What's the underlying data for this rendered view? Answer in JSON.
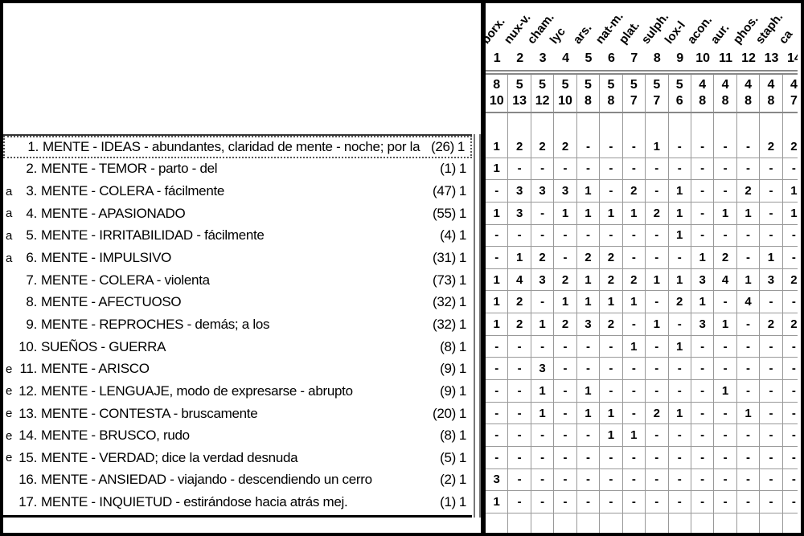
{
  "colors": {
    "grid_line": "#999999",
    "panel_border": "#000000",
    "selection_dotted": "#555555"
  },
  "columns": [
    {
      "num": "1",
      "name": "borx.",
      "count": "8",
      "sum": "10"
    },
    {
      "num": "2",
      "name": "nux-v.",
      "count": "5",
      "sum": "13"
    },
    {
      "num": "3",
      "name": "cham.",
      "count": "5",
      "sum": "12"
    },
    {
      "num": "4",
      "name": "lyc",
      "count": "5",
      "sum": "10"
    },
    {
      "num": "5",
      "name": "ars.",
      "count": "5",
      "sum": "8"
    },
    {
      "num": "6",
      "name": "nat-m.",
      "count": "5",
      "sum": "8"
    },
    {
      "num": "7",
      "name": "plat.",
      "count": "5",
      "sum": "7"
    },
    {
      "num": "8",
      "name": "sulph.",
      "count": "5",
      "sum": "7"
    },
    {
      "num": "9",
      "name": "lox-l",
      "count": "5",
      "sum": "6"
    },
    {
      "num": "10",
      "name": "acon.",
      "count": "4",
      "sum": "8"
    },
    {
      "num": "11",
      "name": "aur.",
      "count": "4",
      "sum": "8"
    },
    {
      "num": "12",
      "name": "phos.",
      "count": "4",
      "sum": "8"
    },
    {
      "num": "13",
      "name": "staph.",
      "count": "4",
      "sum": "8"
    },
    {
      "num": "14",
      "name": "ca",
      "count": "4",
      "sum": "7"
    }
  ],
  "rubrics": [
    {
      "prefix": "",
      "num": "1.",
      "label": "MENTE - IDEAS - abundantes, claridad de mente - noche; por la",
      "count": "(26)",
      "intensity": "1",
      "selected": true,
      "cells": [
        "1",
        "2",
        "2",
        "2",
        "-",
        "-",
        "-",
        "1",
        "-",
        "-",
        "-",
        "-",
        "2",
        "2"
      ]
    },
    {
      "prefix": "",
      "num": "2.",
      "label": "MENTE - TEMOR - parto - del",
      "count": "(1)",
      "intensity": "1",
      "selected": false,
      "cells": [
        "1",
        "-",
        "-",
        "-",
        "-",
        "-",
        "-",
        "-",
        "-",
        "-",
        "-",
        "-",
        "-",
        "-"
      ]
    },
    {
      "prefix": "a",
      "num": "3.",
      "label": "MENTE - COLERA - fácilmente",
      "count": "(47)",
      "intensity": "1",
      "selected": false,
      "cells": [
        "-",
        "3",
        "3",
        "3",
        "1",
        "-",
        "2",
        "-",
        "1",
        "-",
        "-",
        "2",
        "-",
        "1"
      ]
    },
    {
      "prefix": "a",
      "num": "4.",
      "label": "MENTE - APASIONADO",
      "count": "(55)",
      "intensity": "1",
      "selected": false,
      "cells": [
        "1",
        "3",
        "-",
        "1",
        "1",
        "1",
        "1",
        "2",
        "1",
        "-",
        "1",
        "1",
        "-",
        "1"
      ]
    },
    {
      "prefix": "a",
      "num": "5.",
      "label": "MENTE - IRRITABILIDAD - fácilmente",
      "count": "(4)",
      "intensity": "1",
      "selected": false,
      "cells": [
        "-",
        "-",
        "-",
        "-",
        "-",
        "-",
        "-",
        "-",
        "1",
        "-",
        "-",
        "-",
        "-",
        "-"
      ]
    },
    {
      "prefix": "a",
      "num": "6.",
      "label": "MENTE - IMPULSIVO",
      "count": "(31)",
      "intensity": "1",
      "selected": false,
      "cells": [
        "-",
        "1",
        "2",
        "-",
        "2",
        "2",
        "-",
        "-",
        "-",
        "1",
        "2",
        "-",
        "1",
        "-"
      ]
    },
    {
      "prefix": "",
      "num": "7.",
      "label": "MENTE - COLERA - violenta",
      "count": "(73)",
      "intensity": "1",
      "selected": false,
      "cells": [
        "1",
        "4",
        "3",
        "2",
        "1",
        "2",
        "2",
        "1",
        "1",
        "3",
        "4",
        "1",
        "3",
        "2"
      ]
    },
    {
      "prefix": "",
      "num": "8.",
      "label": "MENTE - AFECTUOSO",
      "count": "(32)",
      "intensity": "1",
      "selected": false,
      "cells": [
        "1",
        "2",
        "-",
        "1",
        "1",
        "1",
        "1",
        "-",
        "2",
        "1",
        "-",
        "4",
        "-",
        "-"
      ]
    },
    {
      "prefix": "",
      "num": "9.",
      "label": "MENTE - REPROCHES - demás; a los",
      "count": "(32)",
      "intensity": "1",
      "selected": false,
      "cells": [
        "1",
        "2",
        "1",
        "2",
        "3",
        "2",
        "-",
        "1",
        "-",
        "3",
        "1",
        "-",
        "2",
        "2"
      ]
    },
    {
      "prefix": "",
      "num": "10.",
      "label": "SUEÑOS - GUERRA",
      "count": "(8)",
      "intensity": "1",
      "selected": false,
      "cells": [
        "-",
        "-",
        "-",
        "-",
        "-",
        "-",
        "1",
        "-",
        "1",
        "-",
        "-",
        "-",
        "-",
        "-"
      ]
    },
    {
      "prefix": "e",
      "num": "11.",
      "label": "MENTE - ARISCO",
      "count": "(9)",
      "intensity": "1",
      "selected": false,
      "cells": [
        "-",
        "-",
        "3",
        "-",
        "-",
        "-",
        "-",
        "-",
        "-",
        "-",
        "-",
        "-",
        "-",
        "-"
      ]
    },
    {
      "prefix": "e",
      "num": "12.",
      "label": "MENTE - LENGUAJE, modo de expresarse - abrupto",
      "count": "(9)",
      "intensity": "1",
      "selected": false,
      "cells": [
        "-",
        "-",
        "1",
        "-",
        "1",
        "-",
        "-",
        "-",
        "-",
        "-",
        "1",
        "-",
        "-",
        "-"
      ]
    },
    {
      "prefix": "e",
      "num": "13.",
      "label": "MENTE - CONTESTA - bruscamente",
      "count": "(20)",
      "intensity": "1",
      "selected": false,
      "cells": [
        "-",
        "-",
        "1",
        "-",
        "1",
        "1",
        "-",
        "2",
        "1",
        "-",
        "-",
        "1",
        "-",
        "-"
      ]
    },
    {
      "prefix": "e",
      "num": "14.",
      "label": "MENTE - BRUSCO, rudo",
      "count": "(8)",
      "intensity": "1",
      "selected": false,
      "cells": [
        "-",
        "-",
        "-",
        "-",
        "-",
        "1",
        "1",
        "-",
        "-",
        "-",
        "-",
        "-",
        "-",
        "-"
      ]
    },
    {
      "prefix": "e",
      "num": "15.",
      "label": "MENTE - VERDAD; dice la verdad desnuda",
      "count": "(5)",
      "intensity": "1",
      "selected": false,
      "cells": [
        "-",
        "-",
        "-",
        "-",
        "-",
        "-",
        "-",
        "-",
        "-",
        "-",
        "-",
        "-",
        "-",
        "-"
      ]
    },
    {
      "prefix": "",
      "num": "16.",
      "label": "MENTE - ANSIEDAD - viajando - descendiendo un cerro",
      "count": "(2)",
      "intensity": "1",
      "selected": false,
      "cells": [
        "3",
        "-",
        "-",
        "-",
        "-",
        "-",
        "-",
        "-",
        "-",
        "-",
        "-",
        "-",
        "-",
        "-"
      ]
    },
    {
      "prefix": "",
      "num": "17.",
      "label": "MENTE - INQUIETUD - estirándose hacia atrás mej.",
      "count": "(1)",
      "intensity": "1",
      "selected": false,
      "cells": [
        "1",
        "-",
        "-",
        "-",
        "-",
        "-",
        "-",
        "-",
        "-",
        "-",
        "-",
        "-",
        "-",
        "-"
      ]
    }
  ]
}
